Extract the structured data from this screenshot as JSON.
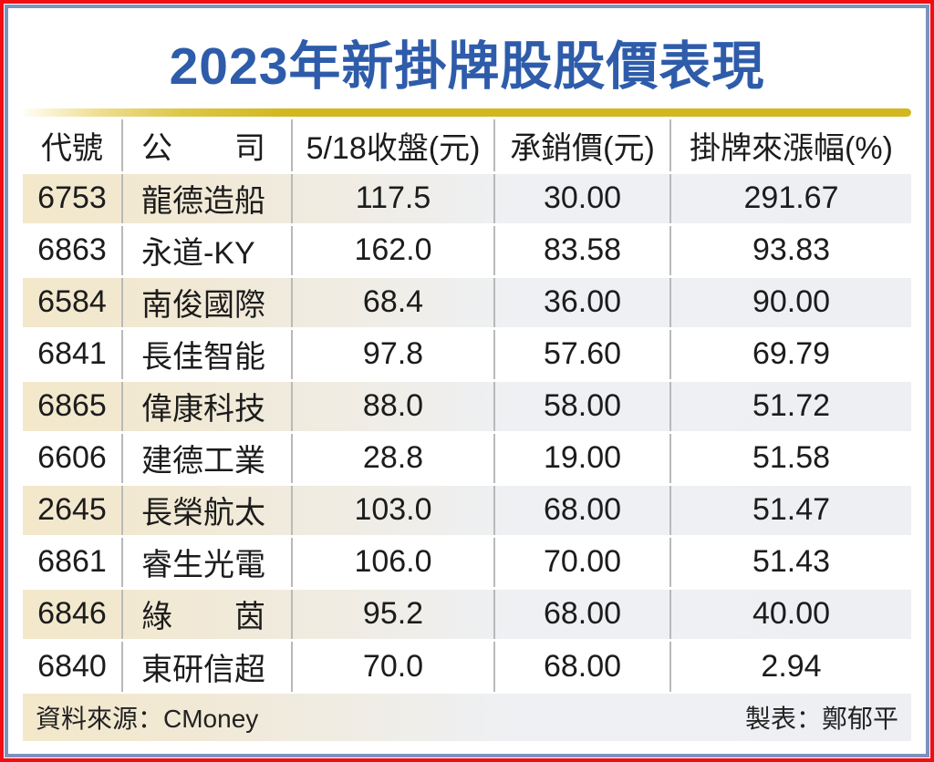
{
  "title": "2023年新掛牌股股價表現",
  "table": {
    "headers": [
      "代號",
      "公　　司",
      "5/18收盤(元)",
      "承銷價(元)",
      "掛牌來漲幅(%)"
    ],
    "rows": [
      {
        "code": "6753",
        "company": "龍德造船",
        "close": "117.5",
        "ipo_price": "30.00",
        "gain": "291.67"
      },
      {
        "code": "6863",
        "company": "永道-KY",
        "close": "162.0",
        "ipo_price": "83.58",
        "gain": "93.83"
      },
      {
        "code": "6584",
        "company": "南俊國際",
        "close": "68.4",
        "ipo_price": "36.00",
        "gain": "90.00"
      },
      {
        "code": "6841",
        "company": "長佳智能",
        "close": "97.8",
        "ipo_price": "57.60",
        "gain": "69.79"
      },
      {
        "code": "6865",
        "company": "偉康科技",
        "close": "88.0",
        "ipo_price": "58.00",
        "gain": "51.72"
      },
      {
        "code": "6606",
        "company": "建德工業",
        "close": "28.8",
        "ipo_price": "19.00",
        "gain": "51.58"
      },
      {
        "code": "2645",
        "company": "長榮航太",
        "close": "103.0",
        "ipo_price": "68.00",
        "gain": "51.47"
      },
      {
        "code": "6861",
        "company": "睿生光電",
        "close": "106.0",
        "ipo_price": "70.00",
        "gain": "51.43"
      },
      {
        "code": "6846",
        "company": "綠　　茵",
        "close": "95.2",
        "ipo_price": "68.00",
        "gain": "40.00"
      },
      {
        "code": "6840",
        "company": "東研信超",
        "close": "70.0",
        "ipo_price": "68.00",
        "gain": "2.94"
      }
    ]
  },
  "footer": {
    "source": "資料來源：CMoney",
    "author": "製表：鄭郁平"
  },
  "colors": {
    "title_blue": "#2e5caa",
    "gold_bar": "#d2b71e",
    "border_red": "#ee0f14",
    "border_blue": "#7d93bd",
    "row_highlight_left": "#f3e8ca",
    "row_highlight_right": "#edeff3",
    "divider_gray": "#b9b9b9"
  }
}
